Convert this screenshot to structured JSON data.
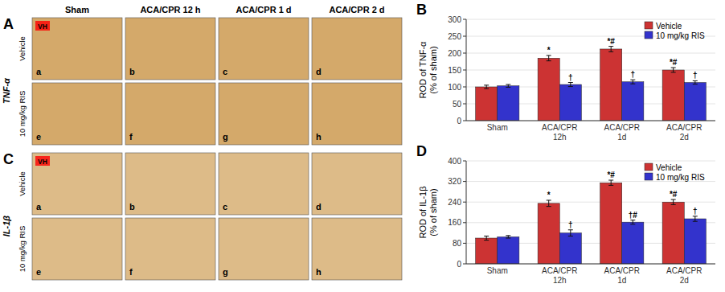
{
  "chart_data": [
    {
      "type": "image_grid",
      "title": "A",
      "group_label": "TNF-α",
      "col_headers": [
        "Sham",
        "ACA/CPR 12 h",
        "ACA/CPR 1 d",
        "ACA/CPR 2 d"
      ],
      "row_labels": [
        "Vehicle",
        "10 mg/kg RIS"
      ],
      "cell_labels": [
        [
          "a",
          "b",
          "c",
          "d"
        ],
        [
          "e",
          "f",
          "g",
          "h"
        ]
      ],
      "annotations": [
        {
          "text": "VH",
          "color": "#FF0000"
        }
      ],
      "color": "#D4A96A"
    },
    {
      "type": "bar",
      "title": "B",
      "ylabel": "ROD of TNF-α\n(% of sham)",
      "categories": [
        "Sham",
        "ACA/CPR\n12h",
        "ACA/CPR\n1d",
        "ACA/CPR\n2d"
      ],
      "series": [
        {
          "name": "Vehicle",
          "color": "#CC3333",
          "values": [
            100,
            185,
            212,
            150
          ],
          "errors": [
            5,
            8,
            8,
            7
          ],
          "annotations": [
            null,
            "*",
            "*#",
            "*#"
          ]
        },
        {
          "name": "10 mg/kg RIS",
          "color": "#3333CC",
          "values": [
            103,
            107,
            115,
            113
          ],
          "errors": [
            4,
            6,
            6,
            5
          ],
          "annotations": [
            null,
            "†",
            "†",
            "†"
          ]
        }
      ],
      "ylim": [
        0,
        300
      ],
      "yticks": [
        0,
        50,
        100,
        150,
        200,
        250,
        300
      ],
      "legend": "upper right"
    },
    {
      "type": "image_grid",
      "title": "C",
      "group_label": "IL-1β",
      "row_labels": [
        "Vehicle",
        "10 mg/kg RIS"
      ],
      "cell_labels": [
        [
          "a",
          "b",
          "c",
          "d"
        ],
        [
          "e",
          "f",
          "g",
          "h"
        ]
      ],
      "annotations": [
        {
          "text": "VH",
          "color": "#FF0000"
        }
      ],
      "color": "#DDBB88"
    },
    {
      "type": "bar",
      "title": "D",
      "ylabel": "ROD of IL-1β\n(% of sham)",
      "categories": [
        "Sham",
        "ACA/CPR\n12h",
        "ACA/CPR\n1d",
        "ACA/CPR\n2d"
      ],
      "series": [
        {
          "name": "Vehicle",
          "color": "#CC3333",
          "values": [
            100,
            235,
            315,
            240
          ],
          "errors": [
            8,
            12,
            10,
            10
          ],
          "annotations": [
            null,
            "*",
            "*#",
            "*#"
          ]
        },
        {
          "name": "10 mg/kg RIS",
          "color": "#3333CC",
          "values": [
            105,
            120,
            162,
            175
          ],
          "errors": [
            5,
            12,
            8,
            10
          ],
          "annotations": [
            null,
            "†",
            "†#",
            "†"
          ]
        }
      ],
      "ylim": [
        0,
        400
      ],
      "yticks": [
        0,
        80,
        160,
        240,
        320,
        400
      ],
      "legend": "upper right"
    }
  ]
}
